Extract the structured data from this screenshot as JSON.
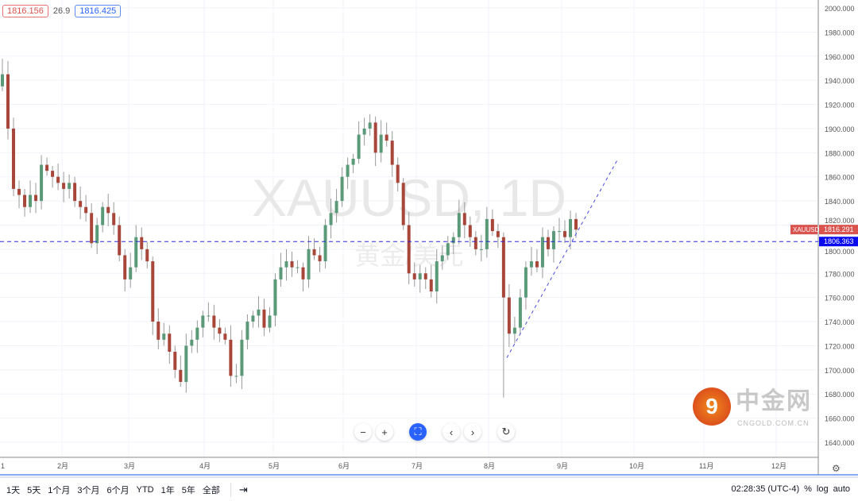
{
  "chart_data": {
    "type": "candlestick",
    "symbol_watermark": "XAUUSD, 1D",
    "symbol_sub_watermark": "黄金/美元",
    "interval": "1D",
    "ylim": [
      1630,
      2008
    ],
    "y_ticks": [
      1640,
      1660,
      1680,
      1700,
      1720,
      1740,
      1760,
      1780,
      1800,
      1820,
      1840,
      1860,
      1880,
      1900,
      1920,
      1940,
      1960,
      1980,
      2000
    ],
    "y_tick_format": "3 decimals",
    "x_ticks": [
      "1",
      "2月",
      "3月",
      "4月",
      "5月",
      "6月",
      "7月",
      "8月",
      "9月",
      "10月",
      "11月",
      "12月"
    ],
    "closes": [
      1945,
      1900,
      1850,
      1845,
      1835,
      1845,
      1840,
      1870,
      1865,
      1860,
      1855,
      1850,
      1855,
      1840,
      1835,
      1830,
      1805,
      1820,
      1835,
      1830,
      1820,
      1795,
      1775,
      1785,
      1810,
      1800,
      1790,
      1740,
      1725,
      1730,
      1715,
      1700,
      1690,
      1720,
      1725,
      1735,
      1745,
      1745,
      1735,
      1730,
      1725,
      1695,
      1695,
      1725,
      1740,
      1745,
      1750,
      1735,
      1745,
      1775,
      1785,
      1790,
      1785,
      1785,
      1775,
      1800,
      1795,
      1790,
      1820,
      1830,
      1840,
      1860,
      1870,
      1875,
      1895,
      1900,
      1905,
      1880,
      1895,
      1890,
      1870,
      1855,
      1820,
      1780,
      1775,
      1780,
      1775,
      1765,
      1790,
      1795,
      1805,
      1810,
      1830,
      1820,
      1810,
      1800,
      1800,
      1825,
      1815,
      1810,
      1760,
      1730,
      1735,
      1760,
      1785,
      1790,
      1785,
      1810,
      1800,
      1815,
      1815,
      1810,
      1825,
      1816.291
    ],
    "first_open": 1935,
    "notable_high": 1958,
    "notable_low": 1677,
    "horizontal_line": 1806.363,
    "trendline": {
      "from": 1710,
      "to": 1875
    },
    "up_color": "#5b9a78",
    "down_color": "#a8463a",
    "last_price": "1816.291",
    "last_price_label": "XAUUSD",
    "line_price": "1806.363",
    "line_color": "#2929e0"
  },
  "legend": {
    "bid": "1816.156",
    "spread": "26.9",
    "ask": "1816.425"
  },
  "ranges": [
    "1天",
    "5天",
    "1个月",
    "3个月",
    "6个月",
    "YTD",
    "1年",
    "5年",
    "全部"
  ],
  "goto_icon": "goto-date-icon",
  "status": {
    "time": "02:28:35 (UTC-4)",
    "percent": "%",
    "log": "log",
    "auto": "auto"
  },
  "logo": {
    "text": "中金网",
    "sub": "CNGOLD.COM.CN"
  }
}
